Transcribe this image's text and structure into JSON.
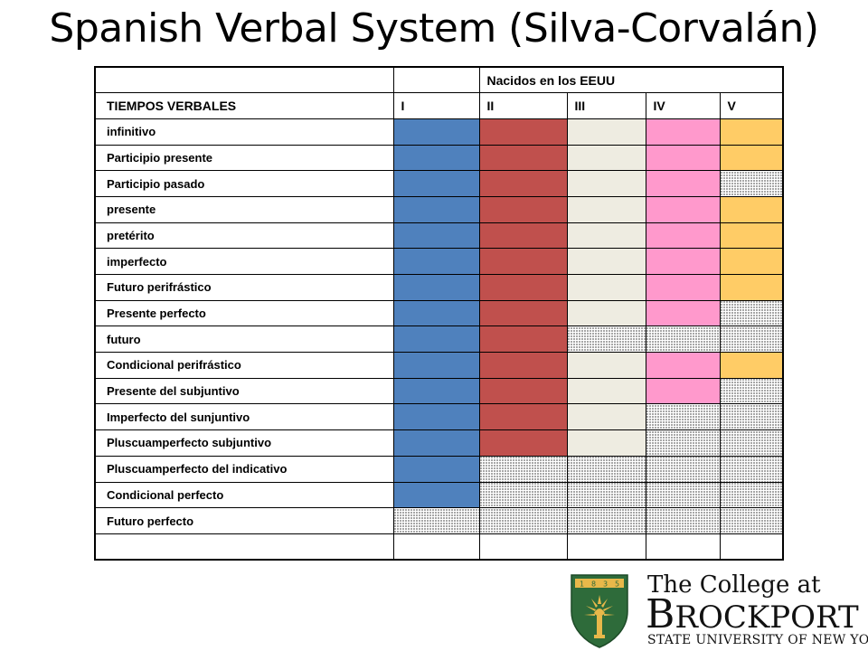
{
  "title": "Spanish Verbal System (Silva-Corvalán)",
  "group_header": "Nacidos en los EEUU",
  "column_header_first": "TIEMPOS VERBALES",
  "columns": [
    "I",
    "II",
    "III",
    "IV",
    "V"
  ],
  "colors": {
    "blue": "#4f81bd",
    "red": "#c0504d",
    "beige": "#eeece1",
    "pink": "#ff99cc",
    "orange": "#ffcc66",
    "dotted": "dotted",
    "white": "#ffffff"
  },
  "rows": [
    {
      "label": "infinitivo",
      "cells": [
        "blue",
        "red",
        "beige",
        "pink",
        "orange"
      ]
    },
    {
      "label": "Participio presente",
      "cells": [
        "blue",
        "red",
        "beige",
        "pink",
        "orange"
      ]
    },
    {
      "label": "Participio pasado",
      "cells": [
        "blue",
        "red",
        "beige",
        "pink",
        "dotted"
      ]
    },
    {
      "label": "presente",
      "cells": [
        "blue",
        "red",
        "beige",
        "pink",
        "orange"
      ]
    },
    {
      "label": "pretérito",
      "cells": [
        "blue",
        "red",
        "beige",
        "pink",
        "orange"
      ]
    },
    {
      "label": "imperfecto",
      "cells": [
        "blue",
        "red",
        "beige",
        "pink",
        "orange"
      ]
    },
    {
      "label": "Futuro perifrástico",
      "cells": [
        "blue",
        "red",
        "beige",
        "pink",
        "orange"
      ]
    },
    {
      "label": "Presente perfecto",
      "cells": [
        "blue",
        "red",
        "beige",
        "pink",
        "dotted"
      ]
    },
    {
      "label": "futuro",
      "cells": [
        "blue",
        "red",
        "dotted",
        "dotted",
        "dotted"
      ]
    },
    {
      "label": "Condicional perifrástico",
      "cells": [
        "blue",
        "red",
        "beige",
        "pink",
        "orange"
      ]
    },
    {
      "label": "Presente del subjuntivo",
      "cells": [
        "blue",
        "red",
        "beige",
        "pink",
        "dotted"
      ]
    },
    {
      "label": "Imperfecto del sunjuntivo",
      "cells": [
        "blue",
        "red",
        "beige",
        "dotted",
        "dotted"
      ]
    },
    {
      "label": "Pluscuamperfecto subjuntivo",
      "cells": [
        "blue",
        "red",
        "beige",
        "dotted",
        "dotted"
      ]
    },
    {
      "label": "Pluscuamperfecto del indicativo",
      "cells": [
        "blue",
        "dotted",
        "dotted",
        "dotted",
        "dotted"
      ]
    },
    {
      "label": "Condicional perfecto",
      "cells": [
        "blue",
        "dotted",
        "dotted",
        "dotted",
        "dotted"
      ]
    },
    {
      "label": "Futuro perfecto",
      "cells": [
        "dotted",
        "dotted",
        "dotted",
        "dotted",
        "dotted"
      ]
    },
    {
      "label": "",
      "cells": [
        "white",
        "white",
        "white",
        "white",
        "white"
      ]
    }
  ],
  "logo": {
    "line1": "The College at",
    "line2_big_b": "B",
    "line2_rest": "ROCKPORT",
    "line3": "STATE UNIVERSITY OF NEW YORK",
    "shield_year": "1835",
    "shield_colors": {
      "green": "#2e6b3a",
      "gold": "#e8b84a"
    }
  }
}
